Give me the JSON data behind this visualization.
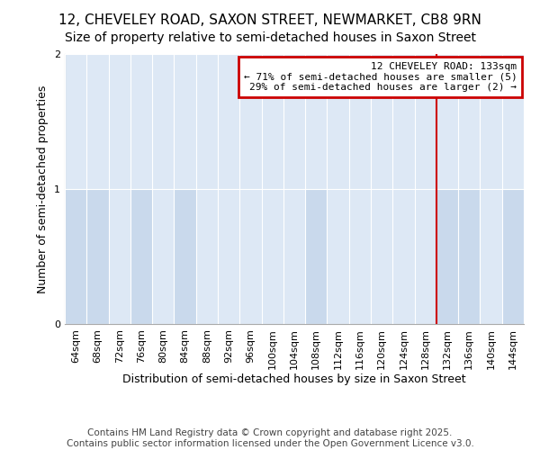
{
  "title": "12, CHEVELEY ROAD, SAXON STREET, NEWMARKET, CB8 9RN",
  "subtitle": "Size of property relative to semi-detached houses in Saxon Street",
  "xlabel": "Distribution of semi-detached houses by size in Saxon Street",
  "ylabel": "Number of semi-detached properties",
  "footer_line1": "Contains HM Land Registry data © Crown copyright and database right 2025.",
  "footer_line2": "Contains public sector information licensed under the Open Government Licence v3.0.",
  "bins": [
    64,
    68,
    72,
    76,
    80,
    84,
    88,
    92,
    96,
    100,
    104,
    108,
    112,
    116,
    120,
    124,
    128,
    132,
    136,
    140,
    144
  ],
  "bin_labels": [
    "64sqm",
    "68sqm",
    "72sqm",
    "76sqm",
    "80sqm",
    "84sqm",
    "88sqm",
    "92sqm",
    "96sqm",
    "100sqm",
    "104sqm",
    "108sqm",
    "112sqm",
    "116sqm",
    "120sqm",
    "124sqm",
    "128sqm",
    "132sqm",
    "136sqm",
    "140sqm",
    "144sqm"
  ],
  "counts": [
    1,
    1,
    0,
    1,
    0,
    1,
    0,
    0,
    0,
    0,
    0,
    1,
    0,
    0,
    0,
    0,
    0,
    1,
    1,
    0,
    1
  ],
  "bar_color": "#c9d9ec",
  "bar_color_highlight": "#b8cfe8",
  "bar_edge_color": "#9ab4d0",
  "subject_bin_index": 17,
  "subject_label": "12 CHEVELEY ROAD: 133sqm",
  "smaller_pct": 71,
  "smaller_count": 5,
  "larger_pct": 29,
  "larger_count": 2,
  "annotation_bg": "#ffffff",
  "annotation_border": "#cc0000",
  "vline_color": "#cc0000",
  "ylim": [
    0,
    2
  ],
  "yticks": [
    0,
    1,
    2
  ],
  "plot_bg_color": "#dde8f5",
  "fig_bg_color": "#ffffff",
  "grid_color": "#ffffff",
  "title_fontsize": 11,
  "subtitle_fontsize": 10,
  "axis_label_fontsize": 9,
  "tick_fontsize": 8,
  "annotation_fontsize": 8,
  "footer_fontsize": 7.5
}
